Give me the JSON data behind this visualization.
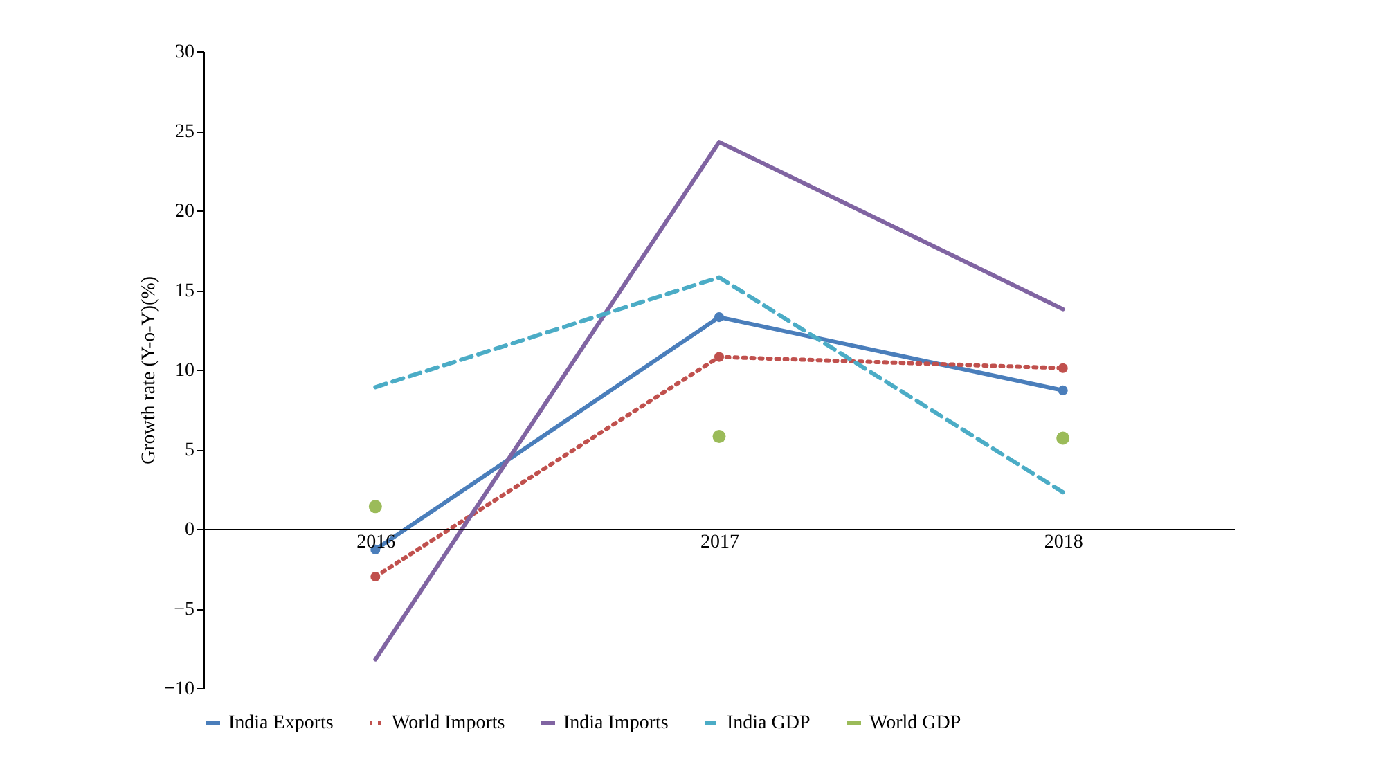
{
  "chart_data": {
    "type": "line",
    "ylabel": "Growth rate (Y-o-Y)(%)",
    "categories": [
      "2016",
      "2017",
      "2018"
    ],
    "ylim": [
      -10,
      30
    ],
    "yticks": [
      -10,
      -5,
      0,
      5,
      10,
      15,
      20,
      25,
      30
    ],
    "grid": false,
    "legend": "bottom",
    "series": [
      {
        "name": "India Exports",
        "color": "#4a7ebb",
        "marker": "circle",
        "line_style": "solid",
        "values": [
          -1.3,
          13.3,
          8.7
        ]
      },
      {
        "name": "World Imports",
        "color": "#c0504d",
        "marker": "circle",
        "line_style": "dotted",
        "values": [
          -3.0,
          10.8,
          10.1
        ]
      },
      {
        "name": "India Imports",
        "color": "#8064a2",
        "marker": "none",
        "line_style": "solid",
        "values": [
          -8.2,
          24.3,
          13.8
        ]
      },
      {
        "name": "India GDP",
        "color": "#4bacc6",
        "marker": "none",
        "line_style": "dashed",
        "values": [
          8.9,
          15.8,
          2.3
        ]
      },
      {
        "name": "World GDP",
        "color": "#9bbb59",
        "type": "scatter",
        "marker": "circle",
        "values": [
          1.4,
          5.8,
          5.7
        ]
      }
    ]
  }
}
